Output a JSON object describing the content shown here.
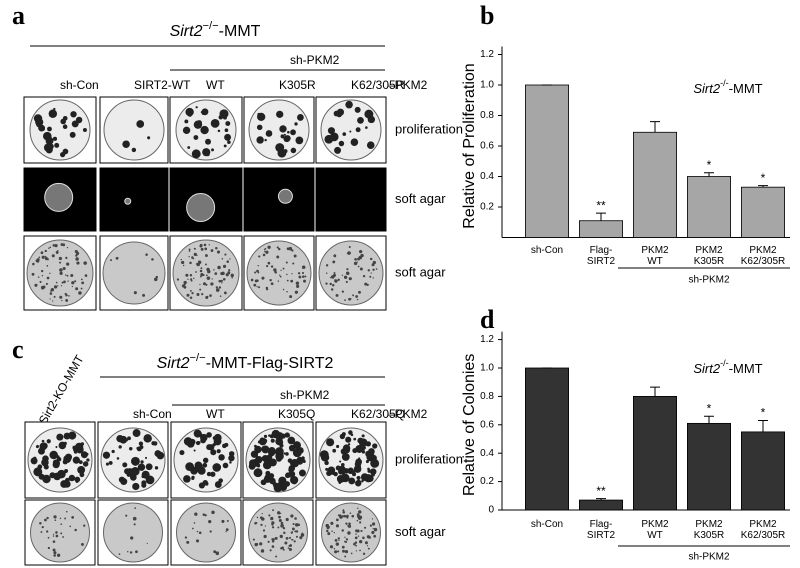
{
  "panel_a": {
    "letter": "a",
    "title": {
      "gene": "Sirt2",
      "sup": "−/−",
      "suffix": "-MMT"
    },
    "group_label": "sh-PKM2",
    "columns": [
      "sh-Con",
      "SIRT2-WT",
      "WT",
      "K305R",
      "K62/305R"
    ],
    "side_label": "–PKM2",
    "rows": [
      "proliferation",
      "soft agar",
      "soft agar"
    ]
  },
  "panel_c": {
    "letter": "c",
    "rotated_label": "Sirt2-KO-MMT",
    "title": {
      "gene": "Sirt2",
      "sup": "−/−",
      "suffix": "-MMT-Flag-SIRT2"
    },
    "group_label": "sh-PKM2",
    "columns": [
      "sh-Con",
      "WT",
      "K305Q",
      "K62/305Q"
    ],
    "side_label": "–PKM2",
    "rows": [
      "proliferation",
      "soft agar"
    ]
  },
  "chart_data": [
    {
      "type": "bar",
      "letter": "b",
      "y_label": "Relative of Proliferation",
      "annotation": {
        "gene": "Sirt2",
        "sup": "-/-",
        "suffix": "-MMT"
      },
      "categories": [
        "sh-Con",
        "Flag-\nSIRT2",
        "PKM2\nWT",
        "PKM2\nK305R",
        "PKM2\nK62/305R"
      ],
      "group_label": "sh-PKM2",
      "values": [
        1,
        0.11,
        0.69,
        0.4,
        0.33
      ],
      "errors": [
        0,
        0.05,
        0.07,
        0.025,
        0.01
      ],
      "sig_labels": [
        null,
        "**",
        null,
        "*",
        "*"
      ],
      "color": "#a6a6a6",
      "ylim": [
        0,
        1.2
      ],
      "yticks": [
        0.2,
        0.4,
        0.6,
        0.8,
        {
          "value": 1,
          "label": "1.0"
        },
        1.2
      ]
    },
    {
      "type": "bar",
      "letter": "d",
      "y_label": "Relative of Colonies",
      "annotation": {
        "gene": "Sirt2",
        "sup": "-/-",
        "suffix": "-MMT"
      },
      "categories": [
        "sh-Con",
        "Flag-\nSIRT2",
        "PKM2\nWT",
        "PKM2\nK305R",
        "PKM2\nK62/305R"
      ],
      "group_label": "sh-PKM2",
      "values": [
        1,
        0.07,
        0.8,
        0.61,
        0.55
      ],
      "errors": [
        0,
        0.01,
        0.065,
        0.05,
        0.08
      ],
      "sig_labels": [
        null,
        "**",
        null,
        "*",
        "*"
      ],
      "color": "#333333",
      "ylim": [
        0,
        1.2
      ],
      "yticks": [
        0,
        0.2,
        0.4,
        0.6,
        0.8,
        {
          "value": 1,
          "label": "1.0"
        },
        1.2
      ]
    }
  ]
}
